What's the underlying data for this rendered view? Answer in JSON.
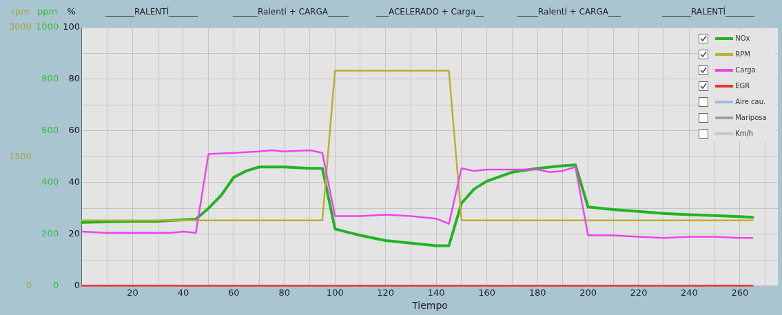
{
  "chart_data": {
    "type": "line",
    "xlabel": "Tiempo",
    "ylabel": "%",
    "y2label": "ppm",
    "y3label": "rpm",
    "annotations": [
      "_______RALENTÍ_______",
      "______Ralentí + CARGA_____",
      "___ACELERADO + Carga__",
      "_____Ralentí + CARGA___",
      "_______RALENTÍ_______"
    ],
    "xlim": [
      0,
      275
    ],
    "xticks": [
      {
        "value": 10,
        "label": null
      },
      20,
      {
        "value": 30,
        "label": null
      },
      40,
      {
        "value": 50,
        "label": null
      },
      60,
      {
        "value": 70,
        "label": null
      },
      80,
      {
        "value": 90,
        "label": null
      },
      100,
      {
        "value": 110,
        "label": null
      },
      120,
      {
        "value": 130,
        "label": null
      },
      140,
      {
        "value": 150,
        "label": null
      },
      160,
      {
        "value": 170,
        "label": null
      },
      180,
      {
        "value": 190,
        "label": null
      },
      200,
      {
        "value": 210,
        "label": null
      },
      220,
      {
        "value": 230,
        "label": null
      },
      240,
      {
        "value": 250,
        "label": null
      },
      260,
      {
        "value": 270,
        "label": null
      }
    ],
    "ylim": [
      0,
      100
    ],
    "yticks": [
      0,
      {
        "value": 10,
        "label": null
      },
      20,
      {
        "value": 30,
        "label": null
      },
      40,
      {
        "value": 50,
        "label": null
      },
      60,
      {
        "value": 70,
        "label": null
      },
      80,
      {
        "value": 90,
        "label": null
      },
      100
    ],
    "y2lim": [
      0,
      1000
    ],
    "y2ticks": [
      0,
      200,
      400,
      600,
      800,
      1000
    ],
    "y3lim": [
      0,
      3000
    ],
    "y3ticks": [
      0,
      1500,
      3000
    ],
    "grid": true,
    "legend": "top right",
    "marker": "none",
    "line_style": "solid",
    "series": [
      {
        "name": "NOx",
        "color": "#22b422",
        "axis": "y2",
        "x": [
          0,
          10,
          20,
          30,
          40,
          45,
          50,
          55,
          60,
          65,
          70,
          80,
          90,
          95,
          100,
          110,
          120,
          130,
          140,
          145,
          150,
          155,
          160,
          170,
          180,
          190,
          195,
          200,
          210,
          220,
          230,
          240,
          250,
          260,
          265
        ],
        "values": [
          245,
          248,
          250,
          250,
          255,
          258,
          300,
          350,
          420,
          445,
          460,
          460,
          455,
          455,
          220,
          195,
          175,
          165,
          155,
          155,
          320,
          375,
          405,
          440,
          455,
          465,
          468,
          305,
          295,
          288,
          280,
          275,
          272,
          268,
          265
        ]
      },
      {
        "name": "RPM",
        "color": "#b8b030",
        "axis": "y3",
        "x": [
          0,
          95,
          100,
          145,
          150,
          265
        ],
        "values": [
          760,
          760,
          2500,
          2500,
          760,
          760
        ]
      },
      {
        "name": "Carga",
        "color": "#ee44ee",
        "axis": "y",
        "x": [
          0,
          10,
          20,
          30,
          35,
          40,
          45,
          50,
          60,
          70,
          75,
          80,
          90,
          95,
          100,
          110,
          120,
          130,
          140,
          145,
          150,
          155,
          160,
          170,
          180,
          185,
          190,
          195,
          200,
          210,
          220,
          230,
          240,
          250,
          260,
          265
        ],
        "values": [
          21,
          20.5,
          20.5,
          20.5,
          20.5,
          21,
          20.5,
          51,
          51.5,
          52,
          52.5,
          52,
          52.5,
          51.5,
          27,
          27,
          27.5,
          27,
          26,
          24,
          45.5,
          44.5,
          45,
          45,
          45,
          44,
          44.5,
          46,
          19.5,
          19.5,
          19,
          18.5,
          19,
          19,
          18.5,
          18.5
        ]
      },
      {
        "name": "EGR",
        "color": "#ee3333",
        "axis": "y",
        "x": [
          0,
          265
        ],
        "values": [
          0,
          0
        ]
      },
      {
        "name": "Aire cau.",
        "color": "#a0b8e0",
        "axis": "y"
      },
      {
        "name": "Mariposa",
        "color": "#a0a0a0",
        "axis": "y"
      },
      {
        "name": "Km/h",
        "color": "#c8c8c8",
        "axis": "y"
      }
    ]
  }
}
